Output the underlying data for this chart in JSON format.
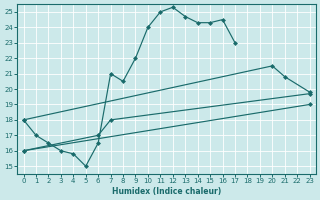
{
  "bg_color": "#cce9ea",
  "line_color": "#1a6b6b",
  "xlabel": "Humidex (Indice chaleur)",
  "xlim": [
    -0.5,
    23.5
  ],
  "ylim": [
    14.5,
    25.5
  ],
  "xticks": [
    0,
    1,
    2,
    3,
    4,
    5,
    6,
    7,
    8,
    9,
    10,
    11,
    12,
    13,
    14,
    15,
    16,
    17,
    18,
    19,
    20,
    21,
    22,
    23
  ],
  "yticks": [
    15,
    16,
    17,
    18,
    19,
    20,
    21,
    22,
    23,
    24,
    25
  ],
  "curve1_x": [
    0,
    1,
    2,
    3,
    4,
    5,
    6,
    7,
    8,
    9,
    10,
    11,
    12,
    13,
    14,
    15,
    16,
    17
  ],
  "curve1_y": [
    18,
    17,
    16.5,
    16.0,
    15.8,
    15.0,
    16.5,
    21.0,
    20.5,
    22.0,
    24.0,
    25.0,
    25.3,
    24.7,
    24.3,
    24.3,
    24.5,
    23.0
  ],
  "curve2_x": [
    0,
    20,
    21,
    23
  ],
  "curve2_y": [
    18.0,
    21.5,
    20.8,
    19.8
  ],
  "curve3_x": [
    0,
    6,
    7,
    23
  ],
  "curve3_y": [
    16.0,
    17.0,
    18.0,
    19.7
  ],
  "curve4_x": [
    0,
    23
  ],
  "curve4_y": [
    16.0,
    19.0
  ]
}
